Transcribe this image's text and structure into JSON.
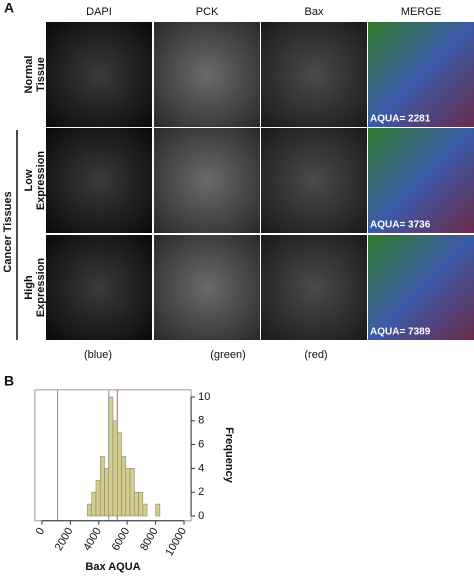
{
  "panel_a": {
    "label": "A",
    "columns": [
      "DAPI",
      "PCK",
      "Bax",
      "MERGE"
    ],
    "rows": [
      {
        "label_lines": [
          "Normal",
          "Tissue"
        ],
        "aqua": "AQUA= 2281"
      },
      {
        "label_lines": [
          "Low",
          "Expression"
        ],
        "aqua": "AQUA= 3736"
      },
      {
        "label_lines": [
          "High",
          "Expression"
        ],
        "aqua": "AQUA= 7389"
      }
    ],
    "group_label": "Cancer Tissues",
    "channels": [
      "(blue)",
      "(green)",
      "(red)"
    ]
  },
  "panel_b": {
    "label": "B"
  },
  "chart_data": {
    "type": "histogram",
    "xlabel": "Bax AQUA",
    "ylabel": "Frequency",
    "bins": [
      3200,
      3500,
      3800,
      4100,
      4400,
      4700,
      5000,
      5300,
      5600,
      5900,
      6200,
      6500,
      6800,
      7100,
      7400,
      7700,
      8000,
      8300,
      8600
    ],
    "counts": [
      1,
      2,
      3,
      5,
      4,
      10,
      8,
      7,
      5,
      4,
      4,
      2,
      2,
      1,
      0,
      0,
      1,
      0
    ],
    "color": "#d3cc8e",
    "xlim": [
      -500,
      10500
    ],
    "xticks": [
      0,
      2000,
      4000,
      6000,
      8000,
      10000
    ],
    "ylim": [
      -0.4,
      10.6
    ],
    "yticks": [
      0,
      2,
      4,
      6,
      8,
      10
    ],
    "reference_lines": [
      {
        "value": 1100,
        "color": "#7f8fb8"
      },
      {
        "value": 4700,
        "color": "#7f8fb8"
      },
      {
        "value": 5300,
        "color": "#e05050"
      }
    ]
  }
}
